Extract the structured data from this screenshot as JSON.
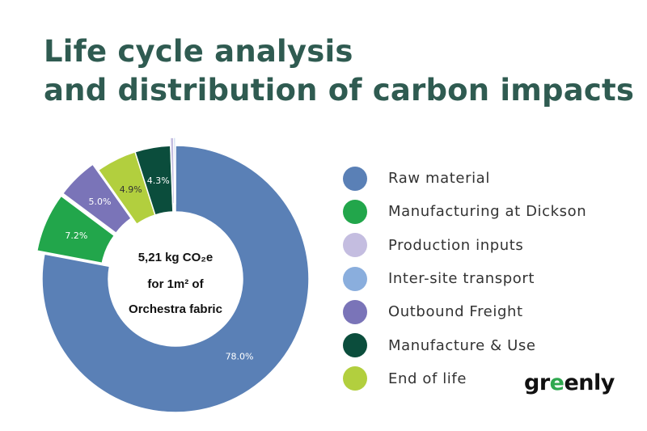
{
  "title": {
    "line1": "Life cycle analysis",
    "line2": "and distribution of carbon impacts"
  },
  "center": {
    "line1": "5,21 kg CO₂e",
    "line2": "for 1m² of",
    "line3": "Orchestra fabric"
  },
  "logo": {
    "text": "greenly",
    "leaf_letter": "e"
  },
  "colors": {
    "title": "#2f5b51",
    "raw_material": "#5a80b6",
    "manufacturing_dickson": "#22a64b",
    "production_inputs": "#c4bde0",
    "inter_site_transport": "#8aaedd",
    "outbound_freight": "#7a74b8",
    "manufacture_use": "#0b4d3c",
    "end_of_life": "#b2cf3e"
  },
  "chart_data": {
    "type": "pie",
    "variant": "donut",
    "title": "Life cycle analysis and distribution of carbon impacts",
    "total_label": "5,21 kg CO₂e for 1m² of Orchestra fabric",
    "categories": [
      "Raw material",
      "Manufacturing at Dickson",
      "Production inputs",
      "Inter-site transport",
      "Outbound Freight",
      "Manufacture & Use",
      "End of life"
    ],
    "values": [
      78.0,
      7.2,
      0.4,
      0.2,
      5.0,
      4.3,
      4.9
    ],
    "labels": [
      "78.0%",
      "7.2%",
      "",
      "",
      "5.0%",
      "4.3%",
      "4.9%"
    ],
    "display_order": [
      0,
      1,
      4,
      6,
      5,
      2,
      3
    ],
    "exploded": [
      false,
      true,
      true,
      true,
      true,
      false,
      false
    ],
    "legend_position": "right",
    "legend": [
      {
        "name": "Raw material",
        "color": "#5a80b6"
      },
      {
        "name": "Manufacturing at Dickson",
        "color": "#22a64b"
      },
      {
        "name": "Production inputs",
        "color": "#c4bde0"
      },
      {
        "name": "Inter-site transport",
        "color": "#8aaedd"
      },
      {
        "name": "Outbound Freight",
        "color": "#7a74b8"
      },
      {
        "name": "Manufacture & Use",
        "color": "#0b4d3c"
      },
      {
        "name": "End of life",
        "color": "#b2cf3e"
      }
    ]
  }
}
